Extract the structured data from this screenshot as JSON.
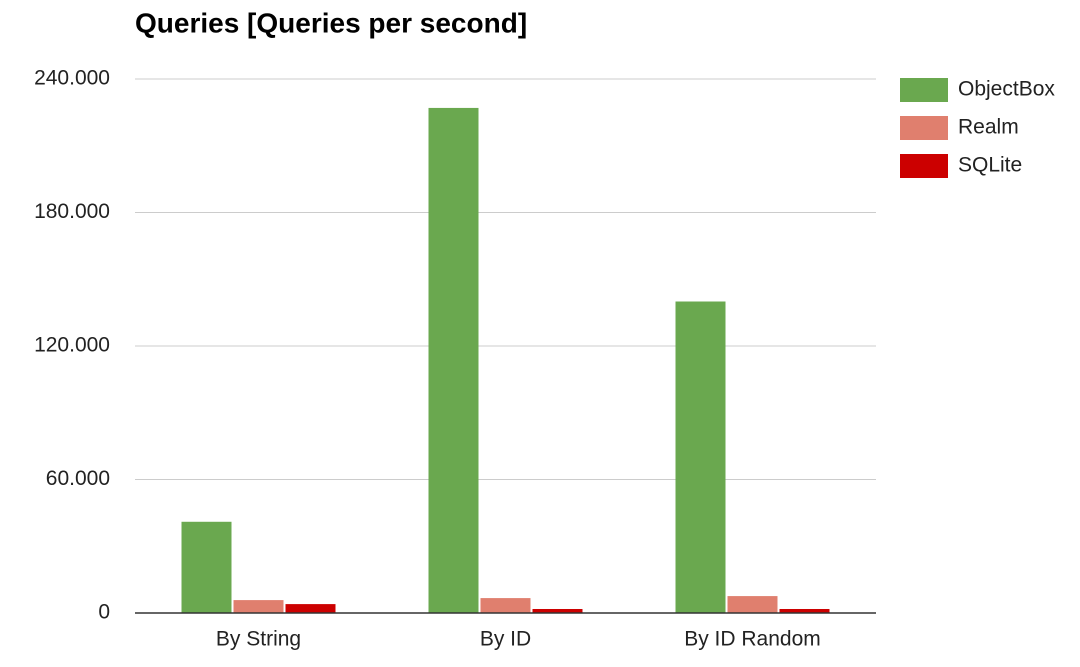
{
  "chart_data": {
    "type": "bar",
    "title": "Queries [Queries per second]",
    "categories": [
      "By String",
      "By ID",
      "By ID Random"
    ],
    "series": [
      {
        "name": "ObjectBox",
        "color": "#6aa84f",
        "values": [
          41000,
          227000,
          140000
        ]
      },
      {
        "name": "Realm",
        "color": "#e07f6e",
        "values": [
          5800,
          6700,
          7600
        ]
      },
      {
        "name": "SQLite",
        "color": "#cc0000",
        "values": [
          4000,
          1800,
          1800
        ]
      }
    ],
    "ylim": [
      0,
      240000
    ],
    "yticks": [
      0,
      {
        "value": 60000,
        "label": "60.000"
      },
      {
        "value": 120000,
        "label": "120.000"
      },
      {
        "value": 180000,
        "label": "180.000"
      },
      {
        "value": 240000,
        "label": "240.000"
      }
    ],
    "grid": true,
    "legend": "right"
  }
}
